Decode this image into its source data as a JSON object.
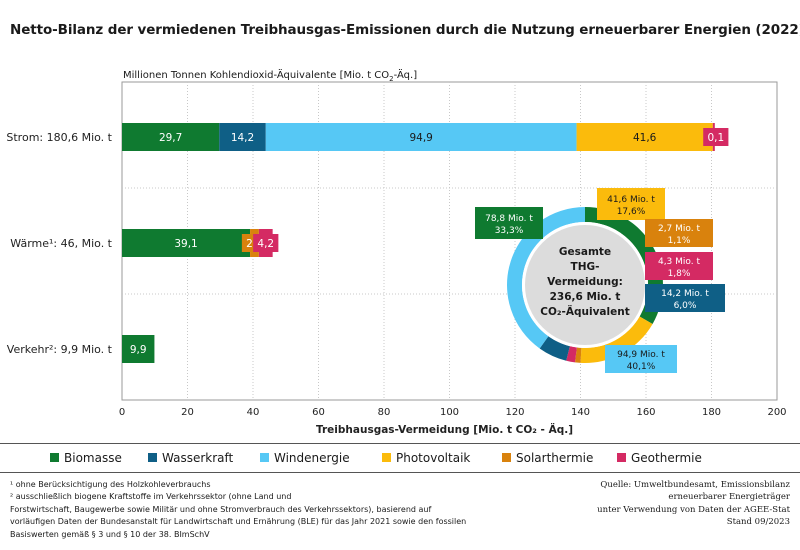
{
  "title": "Netto-Bilanz der vermiedenen Treibhausgas-Emissionen durch die Nutzung erneuerbarer Energien (2022)",
  "unit_label": {
    "pre": "Millionen Tonnen Kohlendioxid-Äquivalente [Mio. t CO",
    "sub": "2",
    "post": "-Äq.]"
  },
  "colors": {
    "Biomasse": "#0f7a30",
    "Wasserkraft": "#0f5f86",
    "Windenergie": "#56c8f5",
    "Photovoltaik": "#fbbb0c",
    "Solarthermie": "#d9820d",
    "Geothermie": "#d42a63"
  },
  "chart_data": [
    {
      "type": "bar",
      "orientation": "horizontal",
      "stacked": true,
      "categories": [
        "Strom: 180,6 Mio. t",
        "Wärme¹: 46, Mio. t",
        "Verkehr²: 9,9 Mio. t"
      ],
      "series": [
        {
          "name": "Biomasse",
          "values": [
            29.7,
            39.1,
            9.9
          ],
          "labels": [
            "29,7",
            "39,1",
            "9,9"
          ]
        },
        {
          "name": "Wasserkraft",
          "values": [
            14.2,
            0,
            0
          ],
          "labels": [
            "14,2",
            "",
            ""
          ]
        },
        {
          "name": "Windenergie",
          "values": [
            94.9,
            0,
            0
          ],
          "labels": [
            "94,9",
            "",
            ""
          ]
        },
        {
          "name": "Photovoltaik",
          "values": [
            41.6,
            0,
            0
          ],
          "labels": [
            "41,6",
            "",
            ""
          ]
        },
        {
          "name": "Solarthermie",
          "values": [
            0,
            2.7,
            0
          ],
          "labels": [
            "",
            "2,7",
            ""
          ]
        },
        {
          "name": "Geothermie",
          "values": [
            0.1,
            4.2,
            0
          ],
          "labels": [
            "0,1",
            "4,2",
            ""
          ]
        }
      ],
      "xlabel": "Treibhausgas-Vermeidung  [Mio. t CO₂ - Äq.]",
      "xlim": [
        0,
        200
      ],
      "xticks": [
        "0",
        "20",
        "40",
        "60",
        "80",
        "100",
        "120",
        "140",
        "160",
        "180",
        "200"
      ],
      "grid": true
    },
    {
      "type": "pie",
      "variant": "donut",
      "center_label": [
        "Gesamte",
        "THG-",
        "Vermeidung:",
        "236,6 Mio. t",
        "CO₂-Äquivalent"
      ],
      "slices": [
        {
          "name": "Biomasse",
          "value": 78.8,
          "share": 33.3,
          "label": [
            "78,8 Mio. t",
            "33,3%"
          ]
        },
        {
          "name": "Photovoltaik",
          "value": 41.6,
          "share": 17.6,
          "label": [
            "41,6 Mio. t",
            "17,6%"
          ]
        },
        {
          "name": "Solarthermie",
          "value": 2.7,
          "share": 1.1,
          "label": [
            "2,7 Mio. t",
            "1,1%"
          ]
        },
        {
          "name": "Geothermie",
          "value": 4.3,
          "share": 1.8,
          "label": [
            "4,3 Mio. t",
            "1,8%"
          ]
        },
        {
          "name": "Wasserkraft",
          "value": 14.2,
          "share": 6.0,
          "label": [
            "14,2 Mio. t",
            "6,0%"
          ]
        },
        {
          "name": "Windenergie",
          "value": 94.9,
          "share": 40.1,
          "label": [
            "94,9 Mio. t",
            "40,1%"
          ]
        }
      ]
    }
  ],
  "legend": [
    "Biomasse",
    "Wasserkraft",
    "Windenergie",
    "Photovoltaik",
    "Solarthermie",
    "Geothermie"
  ],
  "footnotes": [
    "¹ ohne Berücksichtigung des Holzkohleverbrauchs",
    "² ausschließlich biogene Kraftstoffe im Verkehrssektor (ohne Land und",
    "Forstwirtschaft, Baugewerbe sowie Militär und ohne Stromverbrauch des Verkehrssektors), basierend auf",
    "vorläufigen Daten der Bundesanstalt für Landwirtschaft und Ernährung (BLE) für das Jahr 2021 sowie den fossilen",
    "Basiswerten gemäß § 3 und § 10 der 38. BImSchV"
  ],
  "source": [
    "Quelle: Umweltbundesamt, Emissionsbilanz",
    "erneuerbarer Energieträger",
    "unter Verwendung von Daten der AGEE-Stat",
    "Stand 09/2023"
  ]
}
